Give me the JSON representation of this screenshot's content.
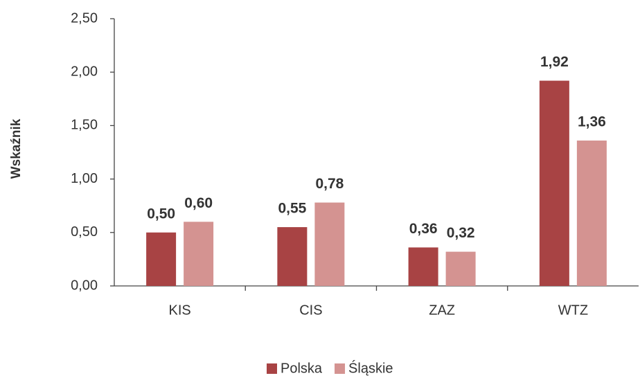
{
  "chart_data": {
    "type": "bar",
    "y_label": "Wskaźnik",
    "categories": [
      "KIS",
      "CIS",
      "ZAZ",
      "WTZ"
    ],
    "series": [
      {
        "name": "Polska",
        "color": "#a84344",
        "values": [
          0.5,
          0.55,
          0.36,
          1.92
        ],
        "value_labels": [
          "0,50",
          "0,55",
          "0,36",
          "1,92"
        ]
      },
      {
        "name": "Śląskie",
        "color": "#d49391",
        "values": [
          0.6,
          0.78,
          0.32,
          1.36
        ],
        "value_labels": [
          "0,60",
          "0,78",
          "0,32",
          "1,36"
        ]
      }
    ],
    "ylim": [
      0,
      2.5
    ],
    "yticks": [
      {
        "value": 0,
        "label": "0,00"
      },
      {
        "value": 0.5,
        "label": "0,50"
      },
      {
        "value": 1,
        "label": "1,00"
      },
      {
        "value": 1.5,
        "label": "1,50"
      },
      {
        "value": 2,
        "label": "2,00"
      },
      {
        "value": 2.5,
        "label": "2,50"
      }
    ],
    "grid": false,
    "legend": "bottom"
  }
}
